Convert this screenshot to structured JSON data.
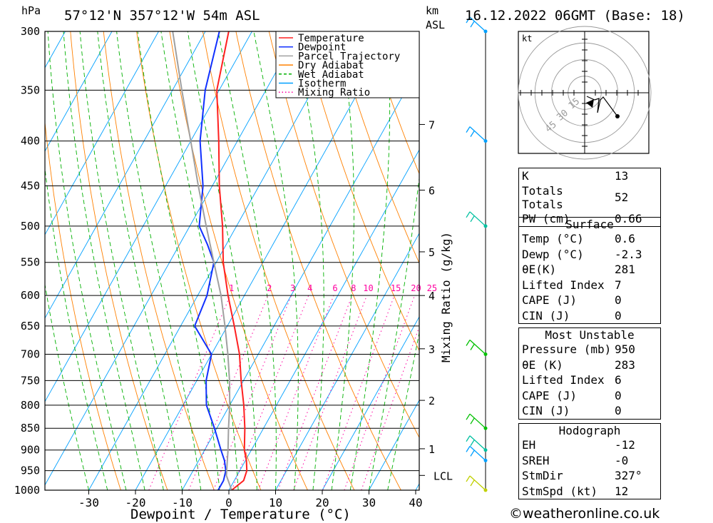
{
  "chart_data": {
    "type": "line",
    "title": "57°12'N  357°12'W  54m  ASL",
    "date_label": "16.12.2022  06GMT  (Base: 18)",
    "xlabel": "Dewpoint / Temperature (°C)",
    "ylabel": "hPa",
    "y2label_top": "km",
    "y2label_sub": "ASL",
    "mixing_ratio_axis_label": "Mixing Ratio (g/kg)",
    "pressure_ticks": [
      "300",
      "350",
      "400",
      "450",
      "500",
      "550",
      "600",
      "650",
      "700",
      "750",
      "800",
      "850",
      "900",
      "950",
      "1000"
    ],
    "temp_ticks": [
      "-30",
      "-20",
      "-10",
      "0",
      "10",
      "20",
      "30",
      "40"
    ],
    "km_ticks": [
      {
        "label": "7",
        "p": 383
      },
      {
        "label": "6",
        "p": 455
      },
      {
        "label": "5",
        "p": 535
      },
      {
        "label": "4",
        "p": 600
      },
      {
        "label": "3",
        "p": 690
      },
      {
        "label": "2",
        "p": 790
      },
      {
        "label": "1",
        "p": 897
      },
      {
        "label": "LCL",
        "p": 962
      }
    ],
    "mixing_ratio_labels": [
      "1",
      "2",
      "3",
      "4",
      "6",
      "8",
      "10",
      "15",
      "20",
      "25"
    ],
    "legend": [
      {
        "name": "Temperature",
        "color": "#ff2020",
        "style": "solid"
      },
      {
        "name": "Dewpoint",
        "color": "#1030ff",
        "style": "solid"
      },
      {
        "name": "Parcel Trajectory",
        "color": "#a0a0a0",
        "style": "solid"
      },
      {
        "name": "Dry Adiabat",
        "color": "#ff8000",
        "style": "solid"
      },
      {
        "name": "Wet Adiabat",
        "color": "#00b000",
        "style": "dash"
      },
      {
        "name": "Isotherm",
        "color": "#00a0ff",
        "style": "solid"
      },
      {
        "name": "Mixing Ratio",
        "color": "#ff00a0",
        "style": "dot"
      }
    ],
    "series": [
      {
        "name": "Temperature",
        "color": "#ff2020",
        "points": [
          [
            1000,
            0.6
          ],
          [
            975,
            2.0
          ],
          [
            950,
            1.5
          ],
          [
            925,
            0.2
          ],
          [
            900,
            -1.5
          ],
          [
            850,
            -4.0
          ],
          [
            800,
            -7.0
          ],
          [
            750,
            -10.5
          ],
          [
            700,
            -14.0
          ],
          [
            650,
            -18.5
          ],
          [
            600,
            -23.5
          ],
          [
            550,
            -28.5
          ],
          [
            500,
            -33.0
          ],
          [
            450,
            -38.5
          ],
          [
            400,
            -44.0
          ],
          [
            350,
            -50.5
          ],
          [
            300,
            -55.0
          ]
        ]
      },
      {
        "name": "Dewpoint",
        "color": "#1030ff",
        "points": [
          [
            1000,
            -2.3
          ],
          [
            975,
            -2.3
          ],
          [
            950,
            -3.0
          ],
          [
            925,
            -4.5
          ],
          [
            900,
            -6.5
          ],
          [
            850,
            -10.5
          ],
          [
            800,
            -15.0
          ],
          [
            750,
            -18.0
          ],
          [
            700,
            -20.0
          ],
          [
            650,
            -27.0
          ],
          [
            600,
            -28.0
          ],
          [
            550,
            -30.5
          ],
          [
            525,
            -34.0
          ],
          [
            500,
            -38.0
          ],
          [
            450,
            -42.0
          ],
          [
            400,
            -48.0
          ],
          [
            350,
            -53.0
          ],
          [
            300,
            -57.0
          ]
        ]
      },
      {
        "name": "Parcel Trajectory",
        "color": "#a0a0a0",
        "points": [
          [
            1000,
            0.6
          ],
          [
            962,
            -2.3
          ],
          [
            900,
            -5.0
          ],
          [
            850,
            -7.5
          ],
          [
            800,
            -10.0
          ],
          [
            750,
            -13.0
          ],
          [
            700,
            -16.5
          ],
          [
            650,
            -20.5
          ],
          [
            600,
            -25.0
          ],
          [
            550,
            -30.5
          ],
          [
            500,
            -36.5
          ],
          [
            450,
            -43.0
          ],
          [
            400,
            -50.0
          ],
          [
            350,
            -58.0
          ],
          [
            300,
            -67.0
          ]
        ]
      }
    ],
    "xlim": [
      -40,
      40
    ],
    "ylim": [
      1000,
      300
    ]
  },
  "winds": {
    "levels": [
      {
        "p": 300,
        "color": "#00a0ff"
      },
      {
        "p": 400,
        "color": "#00a0ff"
      },
      {
        "p": 500,
        "color": "#00c0a0"
      },
      {
        "p": 700,
        "color": "#00c000"
      },
      {
        "p": 850,
        "color": "#00c000"
      },
      {
        "p": 900,
        "color": "#00c0a0"
      },
      {
        "p": 925,
        "color": "#00a0ff"
      },
      {
        "p": 1000,
        "color": "#c0d000"
      }
    ]
  },
  "hodograph": {
    "unit_label": "kt",
    "ring_labels": [
      "15",
      "30",
      "45"
    ]
  },
  "indices": [
    {
      "label": "K",
      "value": "13"
    },
    {
      "label": "Totals Totals",
      "value": "52"
    },
    {
      "label": "PW (cm)",
      "value": "0.66"
    }
  ],
  "surface": {
    "title": "Surface",
    "rows": [
      {
        "label": "Temp (°C)",
        "value": "0.6"
      },
      {
        "label": "Dewp (°C)",
        "value": "-2.3"
      },
      {
        "label": "θE(K)",
        "value": "281"
      },
      {
        "label": "Lifted Index",
        "value": "7"
      },
      {
        "label": "CAPE (J)",
        "value": "0"
      },
      {
        "label": "CIN (J)",
        "value": "0"
      }
    ]
  },
  "most_unstable": {
    "title": "Most Unstable",
    "rows": [
      {
        "label": "Pressure (mb)",
        "value": "950"
      },
      {
        "label": "θE (K)",
        "value": "283"
      },
      {
        "label": "Lifted Index",
        "value": "6"
      },
      {
        "label": "CAPE (J)",
        "value": "0"
      },
      {
        "label": "CIN (J)",
        "value": "0"
      }
    ]
  },
  "hodograph_indices": {
    "title": "Hodograph",
    "rows": [
      {
        "label": "EH",
        "value": "-12"
      },
      {
        "label": "SREH",
        "value": "-0"
      },
      {
        "label": "StmDir",
        "value": "327°"
      },
      {
        "label": "StmSpd (kt)",
        "value": "12"
      }
    ]
  },
  "footer": "©weatheronline.co.uk"
}
